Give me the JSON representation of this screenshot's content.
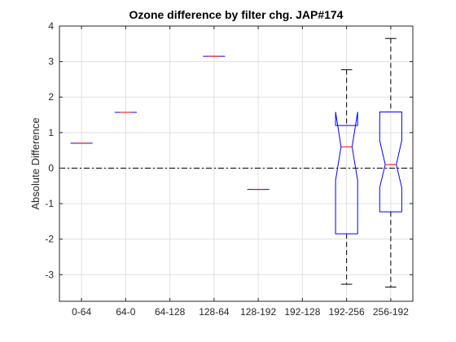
{
  "chart_data": {
    "type": "boxplot",
    "title": "Ozone difference by filter chg. JAP#174",
    "xlabel": "",
    "ylabel": "Absolute Difference",
    "ylim": [
      -3.75,
      4
    ],
    "yticks": [
      -3,
      -2,
      -1,
      0,
      1,
      2,
      3,
      4
    ],
    "grid": true,
    "reference_line": {
      "y": 0,
      "style": "dash-dot"
    },
    "categories": [
      "0-64",
      "64-0",
      "64-128",
      "128-64",
      "128-192",
      "192-128",
      "192-256",
      "256-192"
    ],
    "boxes": [
      {
        "category": "0-64",
        "median": 0.7,
        "q1": 0.7,
        "q3": 0.7,
        "whisker_low": 0.7,
        "whisker_high": 0.7,
        "notch_low": 0.7,
        "notch_high": 0.7
      },
      {
        "category": "64-0",
        "median": 1.57,
        "q1": 1.57,
        "q3": 1.57,
        "whisker_low": 1.57,
        "whisker_high": 1.57,
        "notch_low": 1.57,
        "notch_high": 1.57
      },
      {
        "category": "64-128",
        "median": null
      },
      {
        "category": "128-64",
        "median": 3.15,
        "q1": 3.15,
        "q3": 3.15,
        "whisker_low": 3.15,
        "whisker_high": 3.15,
        "notch_low": 3.15,
        "notch_high": 3.15
      },
      {
        "category": "128-192",
        "median": -0.6,
        "q1": -0.6,
        "q3": -0.6,
        "whisker_low": -0.6,
        "whisker_high": -0.6,
        "notch_low": -0.6,
        "notch_high": -0.6
      },
      {
        "category": "192-128",
        "median": null
      },
      {
        "category": "192-256",
        "median": 0.6,
        "q1": -1.85,
        "q3": 1.2,
        "whisker_low": -3.27,
        "whisker_high": 2.77,
        "notch_low": -0.35,
        "notch_high": 1.58
      },
      {
        "category": "256-192",
        "median": 0.1,
        "q1": -1.23,
        "q3": 1.58,
        "whisker_low": -3.35,
        "whisker_high": 3.65,
        "notch_low": -0.55,
        "notch_high": 0.78
      }
    ],
    "colors": {
      "box": "#0000ff",
      "median": "#ff0000",
      "whisker": "#000000",
      "grid": "#dfdfdf",
      "axis": "#262626"
    }
  }
}
